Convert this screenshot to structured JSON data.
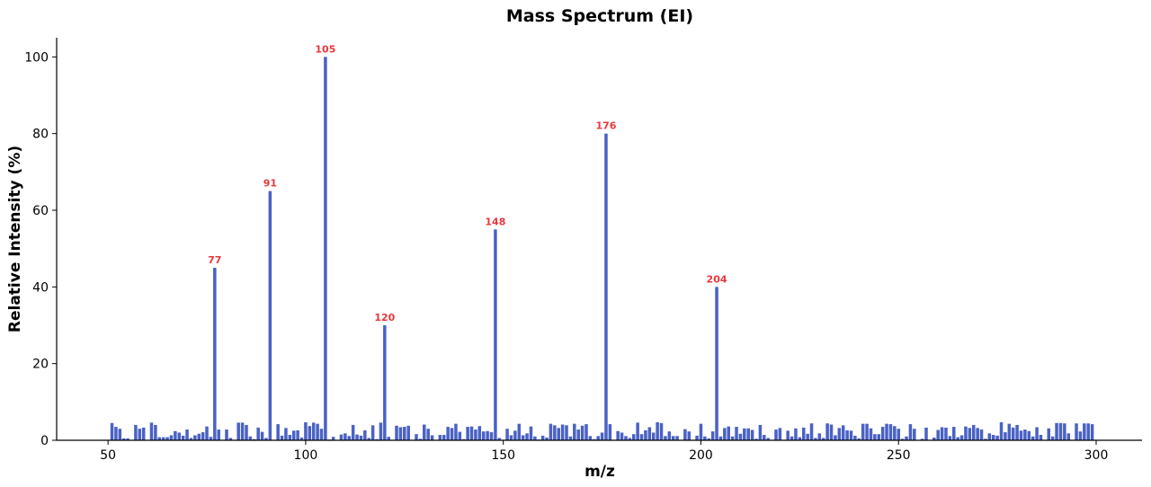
{
  "chart_data": {
    "type": "bar",
    "title": "Mass Spectrum (EI)",
    "xlabel": "m/z",
    "ylabel": "Relative Intensity (%)",
    "xlim": [
      37,
      311.6
    ],
    "ylim": [
      0,
      105
    ],
    "xticks": [
      50,
      100,
      150,
      200,
      250,
      300
    ],
    "yticks": [
      0,
      20,
      40,
      60,
      80,
      100
    ],
    "grid": false,
    "bar_color": "#4a62c4",
    "annotation_color": "#e8383d",
    "mz_start": 50,
    "intensities": [
      0,
      4.5,
      3.5,
      3,
      0.5,
      0.5,
      0,
      4,
      3,
      3.3,
      0,
      4.6,
      4,
      0.8,
      0.8,
      0.8,
      1.3,
      2.4,
      2,
      1.2,
      2.8,
      0.6,
      1.3,
      1.7,
      2.1,
      3.6,
      0.9,
      45,
      2.8,
      0,
      2.8,
      0.6,
      0,
      4.6,
      4.6,
      4,
      1,
      0.3,
      3.3,
      2.2,
      0.6,
      65,
      0,
      4.2,
      1.2,
      3.2,
      1.4,
      2.5,
      2.6,
      0.7,
      4.7,
      3.7,
      4.6,
      4.3,
      3,
      100,
      0.2,
      0.9,
      0,
      1.5,
      1.8,
      1.1,
      4,
      1.5,
      1.2,
      2.6,
      0.6,
      3.9,
      0.3,
      4.6,
      30,
      0.9,
      0,
      3.8,
      3.4,
      3.5,
      3.8,
      0,
      1.6,
      0.4,
      4.1,
      3,
      1.3,
      0,
      1.4,
      1.4,
      3.5,
      3.2,
      4.3,
      2.2,
      0.3,
      3.5,
      3.6,
      2.8,
      3.7,
      2.3,
      2.4,
      2.1,
      55,
      0.6,
      0,
      3,
      1.3,
      2.5,
      4.3,
      1.3,
      1.8,
      3.6,
      1,
      0.2,
      1.2,
      0.7,
      4.3,
      3.9,
      3.2,
      4.1,
      3.9,
      1,
      4.3,
      2.8,
      3.8,
      4.2,
      1.1,
      0.3,
      1.1,
      2,
      80,
      4.2,
      0,
      2.4,
      2,
      1.1,
      0.6,
      1.6,
      4.6,
      1.6,
      2.6,
      3.4,
      2,
      4.7,
      4.5,
      1.1,
      2.3,
      1.1,
      1.1,
      0,
      2.9,
      2.3,
      0,
      1.2,
      4.3,
      1,
      0.5,
      2.3,
      40,
      1,
      3.2,
      3.6,
      1,
      3.5,
      1.7,
      3.1,
      3.1,
      2.7,
      0.4,
      4,
      1.4,
      0.6,
      0,
      2.8,
      3.2,
      0,
      2.5,
      1,
      3.1,
      0.8,
      3.3,
      1.7,
      4.4,
      0.6,
      1.8,
      0.6,
      4.4,
      4.1,
      1.3,
      3.2,
      3.9,
      2.6,
      2.5,
      1.2,
      0.5,
      4.3,
      4.3,
      3.1,
      1.6,
      1.6,
      3.5,
      4.3,
      4.2,
      3.7,
      3,
      0.4,
      1,
      4.2,
      3,
      0,
      0.4,
      3.3,
      0,
      0.7,
      2.7,
      3.4,
      3.3,
      1.1,
      3.5,
      0.8,
      1.3,
      3.6,
      3.2,
      4,
      3.2,
      2.8,
      0.4,
      1.8,
      1.4,
      1.2,
      4.7,
      2.1,
      4.3,
      3.3,
      4,
      2.5,
      2.8,
      2.4,
      1,
      3.4,
      1.4,
      0,
      3.1,
      1,
      4.5,
      4.5,
      4.4,
      1.8,
      0,
      4.4,
      2.3,
      4.4,
      4.4,
      4.2
    ],
    "annotations": [
      {
        "x": 77,
        "y": 45,
        "label": "77"
      },
      {
        "x": 91,
        "y": 65,
        "label": "91"
      },
      {
        "x": 105,
        "y": 100,
        "label": "105"
      },
      {
        "x": 120,
        "y": 30,
        "label": "120"
      },
      {
        "x": 148,
        "y": 55,
        "label": "148"
      },
      {
        "x": 176,
        "y": 80,
        "label": "176"
      },
      {
        "x": 204,
        "y": 40,
        "label": "204"
      }
    ]
  }
}
